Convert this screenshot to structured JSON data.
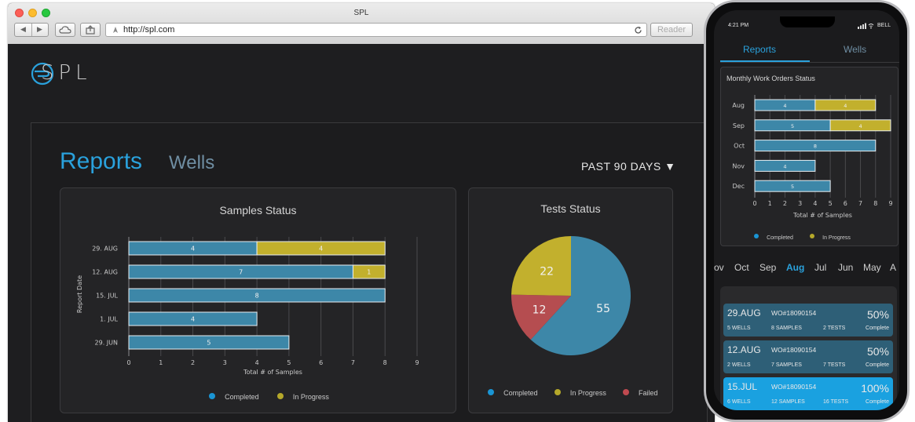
{
  "browser": {
    "title": "SPL",
    "url": "http://spl.com",
    "reader_label": "Reader",
    "back_icon": "back-arrow-icon",
    "forward_icon": "forward-arrow-icon",
    "cloud_icon": "cloud-icon",
    "share_icon": "share-icon",
    "reload_icon": "reload-icon"
  },
  "app": {
    "logo_text": "SPL",
    "tabs": [
      {
        "label": "Reports",
        "active": true
      },
      {
        "label": "Wells",
        "active": false
      }
    ],
    "period_label": "PAST 90 DAYS ▼"
  },
  "samples_panel": {
    "title": "Samples Status",
    "ylabel": "Report Date",
    "xlabel": "Total # of Samples",
    "legend": [
      {
        "label": "Completed",
        "color": "#1a95d4"
      },
      {
        "label": "In Progress",
        "color": "#b5a82a"
      }
    ]
  },
  "tests_panel": {
    "title": "Tests Status",
    "legend": [
      {
        "label": "Completed",
        "color": "#1a95d4"
      },
      {
        "label": "In Progress",
        "color": "#b5a82a"
      },
      {
        "label": "Failed",
        "color": "#c04a50"
      }
    ]
  },
  "colors": {
    "completed": "#3d87a8",
    "in_progress": "#c2b02d",
    "failed": "#b54d50",
    "accent": "#2aa1dc"
  },
  "chart_data": [
    {
      "type": "bar",
      "orientation": "horizontal",
      "stacked": true,
      "title": "Samples Status",
      "categories": [
        "29. AUG",
        "12. AUG",
        "15. JUL",
        "1. JUL",
        "29. JUN"
      ],
      "series": [
        {
          "name": "Completed",
          "values": [
            4,
            7,
            8,
            4,
            5
          ]
        },
        {
          "name": "In Progress",
          "values": [
            4,
            1,
            0,
            0,
            0
          ]
        }
      ],
      "xlabel": "Total # of Samples",
      "ylabel": "Report Date",
      "xlim": [
        0,
        9
      ],
      "xticks": [
        0,
        1,
        2,
        3,
        4,
        5,
        6,
        7,
        8,
        9
      ],
      "grid": true,
      "legend": "bottom"
    },
    {
      "type": "pie",
      "title": "Tests Status",
      "slices": [
        {
          "name": "Completed",
          "value": 55
        },
        {
          "name": "Failed",
          "value": 12
        },
        {
          "name": "In Progress",
          "value": 22
        }
      ],
      "legend": "bottom"
    },
    {
      "type": "bar",
      "orientation": "horizontal",
      "stacked": true,
      "title": "Monthly Work Orders Status",
      "categories": [
        "Aug",
        "Sep",
        "Oct",
        "Nov",
        "Dec"
      ],
      "series": [
        {
          "name": "Completed",
          "values": [
            4,
            5,
            8,
            4,
            5
          ]
        },
        {
          "name": "In Progress",
          "values": [
            4,
            4,
            0,
            0,
            0
          ]
        }
      ],
      "xlabel": "Total # of Samples",
      "xlim": [
        0,
        9
      ],
      "xticks": [
        0,
        1,
        2,
        3,
        4,
        5,
        6,
        7,
        8,
        9
      ],
      "grid": true,
      "legend": "bottom"
    }
  ],
  "phone": {
    "time": "4:21 PM",
    "carrier": "BELL",
    "tabs": [
      {
        "label": "Reports",
        "active": true
      },
      {
        "label": "Wells",
        "active": false
      }
    ],
    "chart_title": "Monthly Work Orders Status",
    "xlabel": "Total # of Samples",
    "legend": [
      {
        "label": "Completed",
        "color": "#1a95d4"
      },
      {
        "label": "In Progress",
        "color": "#b5a82a"
      }
    ],
    "months": [
      "ov",
      "Oct",
      "Sep",
      "Aug",
      "Jul",
      "Jun",
      "May",
      "A"
    ],
    "active_month": "Aug",
    "work_orders": [
      {
        "date": "29.AUG",
        "wo": "WO#18090154",
        "pct": "50%",
        "complete": "Complete",
        "wells": "5 WELLS",
        "samples": "8 SAMPLES",
        "tests": "2 TESTS",
        "highlight": false
      },
      {
        "date": "12.AUG",
        "wo": "WO#18090154",
        "pct": "50%",
        "complete": "Complete",
        "wells": "2 WELLS",
        "samples": "7 SAMPLES",
        "tests": "7 TESTS",
        "highlight": false
      },
      {
        "date": "15.JUL",
        "wo": "WO#18090154",
        "pct": "100%",
        "complete": "Complete",
        "wells": "6 WELLS",
        "samples": "12 SAMPLES",
        "tests": "16 TESTS",
        "highlight": true
      }
    ]
  }
}
